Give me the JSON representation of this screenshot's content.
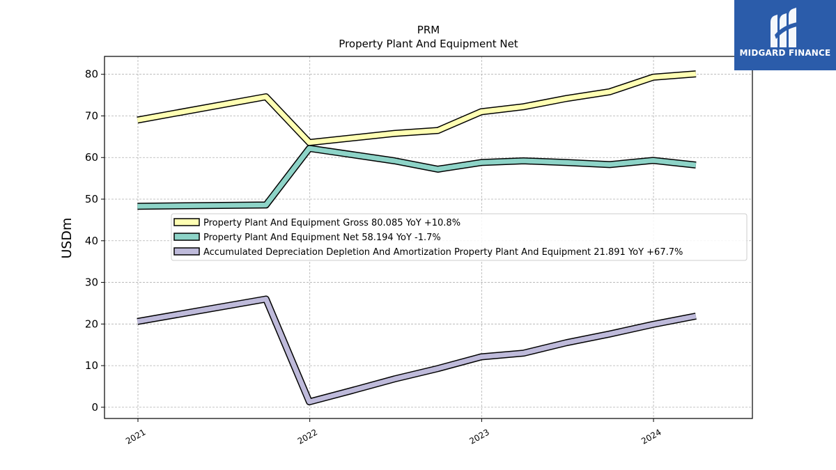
{
  "brand": {
    "name": "MIDGARD FINANCE",
    "bg_color": "#2b5caa"
  },
  "chart_data": {
    "type": "line",
    "title": "PRM",
    "subtitle": "Property Plant And Equipment Net",
    "xlabel": "",
    "ylabel": "USDm",
    "x_ticks": [
      "2021",
      "2022",
      "2023",
      "2024"
    ],
    "y_ticks": [
      0,
      10,
      20,
      30,
      40,
      50,
      60,
      70,
      80
    ],
    "ylim": [
      -2.7,
      84.3
    ],
    "xlim": [
      "2020-10-22",
      "2024-07-29"
    ],
    "grid": true,
    "legend_placement": "center",
    "series": [
      {
        "name": "Property Plant And Equipment Gross  80.085 YoY +10.8%",
        "color": "#ffffb3",
        "x": [
          "2020-12-31",
          "2021-09-30",
          "2021-12-31",
          "2022-06-30",
          "2022-09-30",
          "2022-12-31",
          "2023-03-31",
          "2023-06-30",
          "2023-09-30",
          "2023-12-31",
          "2024-03-31"
        ],
        "y": [
          69.0,
          74.6,
          63.6,
          65.8,
          66.5,
          71.0,
          72.2,
          74.2,
          75.8,
          79.3,
          80.1
        ]
      },
      {
        "name": "Property Plant And Equipment Net  58.194 YoY -1.7%",
        "color": "#8dd3c7",
        "x": [
          "2020-12-31",
          "2021-09-30",
          "2021-12-31",
          "2022-06-30",
          "2022-09-30",
          "2022-12-31",
          "2023-03-31",
          "2023-06-30",
          "2023-09-30",
          "2023-12-31",
          "2024-03-31"
        ],
        "y": [
          48.3,
          48.6,
          62.2,
          59.2,
          57.2,
          58.8,
          59.2,
          58.8,
          58.3,
          59.3,
          58.2
        ]
      },
      {
        "name": "Accumulated Depreciation Depletion And Amortization Property Plant And Equipment  21.891 YoY +67.7%",
        "color": "#bebada",
        "x": [
          "2020-12-31",
          "2021-09-30",
          "2021-12-31",
          "2022-03-31",
          "2022-06-30",
          "2022-09-30",
          "2022-12-31",
          "2023-03-31",
          "2023-06-30",
          "2023-09-30",
          "2023-12-31",
          "2024-03-31"
        ],
        "y": [
          20.6,
          26.0,
          1.3,
          4.0,
          6.8,
          9.3,
          12.1,
          13.0,
          15.5,
          17.6,
          19.9,
          21.9
        ]
      }
    ]
  }
}
